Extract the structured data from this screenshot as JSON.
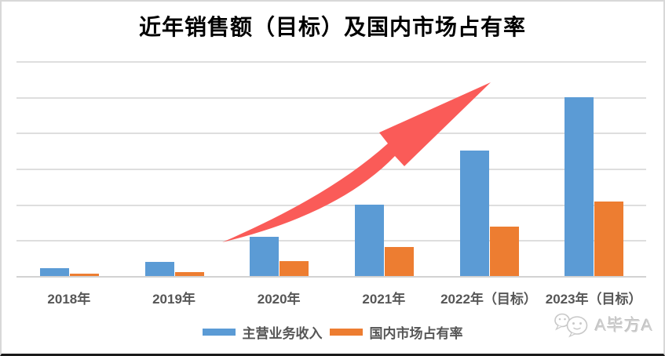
{
  "chart_data": {
    "type": "bar",
    "title": "近年销售额（目标）及国内市场占有率",
    "categories": [
      "2018年",
      "2019年",
      "2020年",
      "2021年",
      "2022年（目标）",
      "2023年（目标）"
    ],
    "series": [
      {
        "name": "主营业务收入",
        "color": "#5B9BD5",
        "values": [
          0.21,
          0.39,
          1.09,
          1.99,
          3.5,
          5.0
        ]
      },
      {
        "name": "国内市场占有率",
        "color": "#ED7D31",
        "values": [
          0.06,
          0.12,
          0.41,
          0.82,
          1.37,
          2.09
        ]
      }
    ],
    "ylim": [
      0,
      6
    ],
    "y_axis_note": "no y-axis tick labels shown; values estimated in gridline units (1 unit per gridline gap)",
    "gridline_count": 7,
    "grid": true,
    "legend_position": "bottom-center",
    "annotation": {
      "name": "growth-arrow",
      "shape": "curved-up-arrow",
      "color": "#FA5B58"
    }
  },
  "watermark": {
    "text": "A毕方A",
    "icon": "wechat-icon",
    "color": "#cfcfcf"
  },
  "frame": {
    "background": "#ffffff",
    "border_color": "#d8d8d8",
    "bottom_bar_color": "#1a1a1a",
    "gridline_color": "#dedede",
    "axis_line_color": "#d2d2d2",
    "label_color": "#565656"
  }
}
